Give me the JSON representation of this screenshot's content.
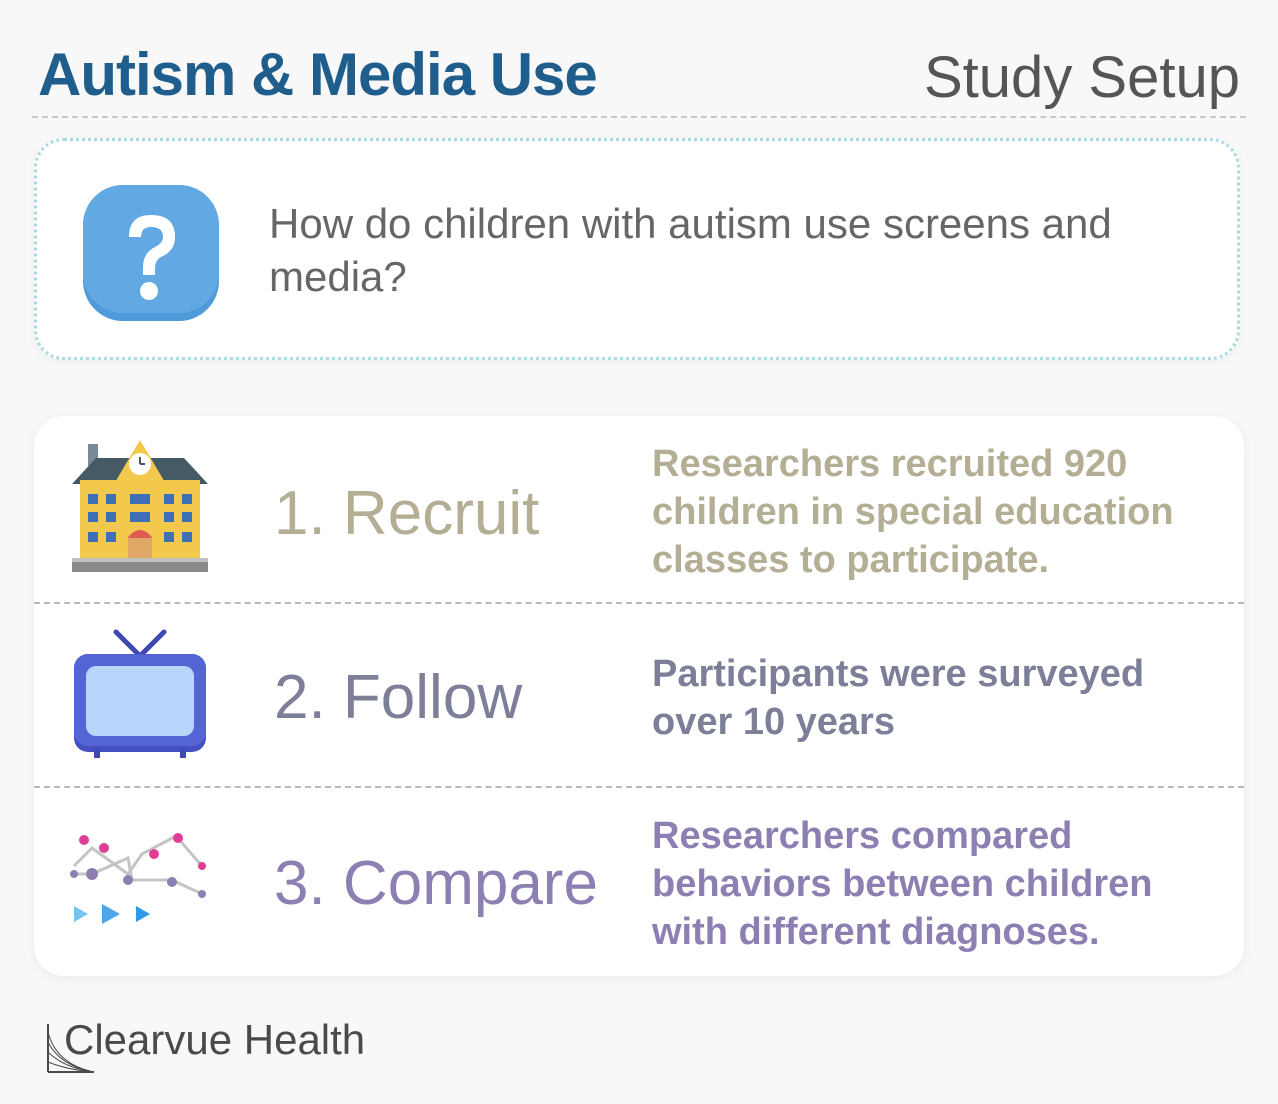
{
  "header": {
    "title": "Autism & Media Use",
    "subtitle": "Study Setup"
  },
  "question": {
    "icon": "question-mark-icon",
    "text": "How do children with autism use screens and media?"
  },
  "steps": [
    {
      "icon": "school-building-icon",
      "label": "1. Recruit",
      "description": "Researchers recruited 920 children in special education classes to participate.",
      "color": "#b3ae94"
    },
    {
      "icon": "television-icon",
      "label": "2. Follow",
      "description": "Participants were surveyed over 10 years",
      "color": "#7d7f99"
    },
    {
      "icon": "line-graph-icon",
      "label": "3. Compare",
      "description": "Researchers compared behaviors between children with different diagnoses.",
      "color": "#8e7fb2"
    }
  ],
  "footer": {
    "brand": "Clearvue Health"
  },
  "colors": {
    "title": "#1f5e8c",
    "background": "#f8f8f8",
    "question_border": "#a9dce0"
  }
}
